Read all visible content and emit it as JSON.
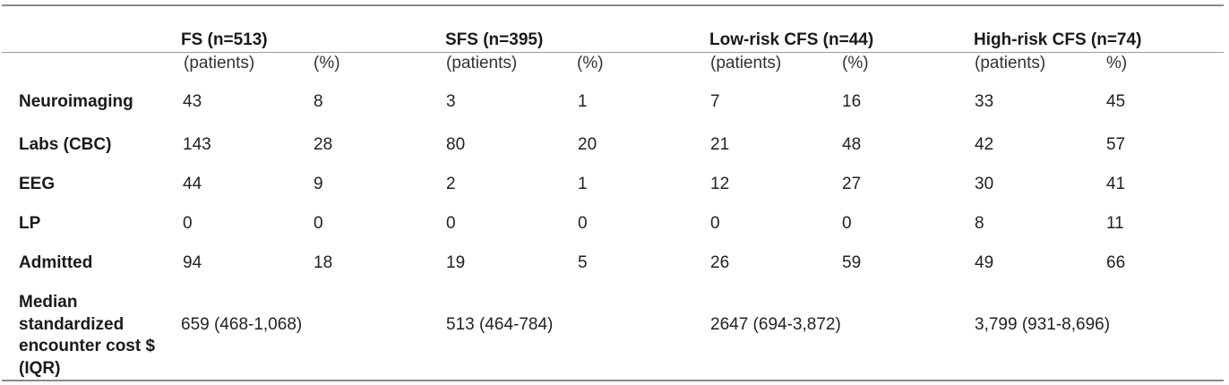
{
  "groups": [
    {
      "title": "FS (n=513)",
      "sub_count": "(patients)",
      "sub_pct": "(%)"
    },
    {
      "title": "SFS (n=395)",
      "sub_count": "(patients)",
      "sub_pct": "(%)"
    },
    {
      "title": "Low-risk CFS (n=44)",
      "sub_count": "(patients)",
      "sub_pct": "(%)"
    },
    {
      "title": "High-risk CFS (n=74)",
      "sub_count": "(patients)",
      "sub_pct": "%)"
    }
  ],
  "rows": [
    {
      "label": "Neuroimaging",
      "values": [
        "43",
        "8",
        "3",
        "1",
        "7",
        "16",
        "33",
        "45"
      ]
    },
    {
      "label": "Labs (CBC)",
      "values": [
        "143",
        "28",
        "80",
        "20",
        "21",
        "48",
        "42",
        "57"
      ]
    },
    {
      "label": "EEG",
      "values": [
        "44",
        "9",
        "2",
        "1",
        "12",
        "27",
        "30",
        "41"
      ]
    },
    {
      "label": "LP",
      "values": [
        "0",
        "0",
        "0",
        "0",
        "0",
        "0",
        "8",
        "11"
      ]
    },
    {
      "label": "Admitted",
      "values": [
        "94",
        "18",
        "19",
        "5",
        "26",
        "59",
        "49",
        "66"
      ]
    }
  ],
  "cost_row": {
    "label": "Median standardized encounter cost $ (IQR)",
    "values": [
      "659 (468-1,068)",
      "513 (464-784)",
      "2647 (694-3,872)",
      "3,799 (931-8,696)"
    ]
  }
}
